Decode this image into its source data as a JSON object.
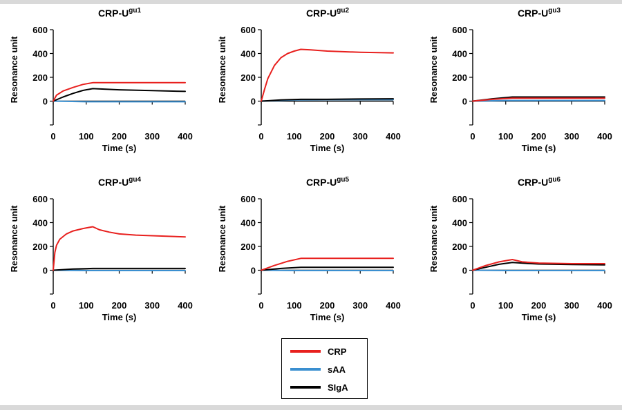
{
  "colors": {
    "CRP": "#e8201e",
    "sAA": "#3a8fd0",
    "SIgA": "#000000",
    "axis": "#000000"
  },
  "legend": [
    {
      "label": "CRP",
      "color": "#e8201e"
    },
    {
      "label": "sAA",
      "color": "#3a8fd0"
    },
    {
      "label": "SIgA",
      "color": "#000000"
    }
  ],
  "chart_data": [
    {
      "type": "line",
      "title_base": "CRP-U",
      "title_sup": "gu1",
      "xlabel": "Time (s)",
      "ylabel": "Resonance unit",
      "xlim": [
        0,
        400
      ],
      "ylim": [
        -200,
        600
      ],
      "xticks": [
        0,
        100,
        200,
        300,
        400
      ],
      "yticks": [
        0,
        200,
        400,
        600
      ],
      "series": [
        {
          "name": "CRP",
          "color": "#e8201e",
          "points": [
            [
              0,
              0
            ],
            [
              10,
              50
            ],
            [
              30,
              85
            ],
            [
              60,
              115
            ],
            [
              90,
              140
            ],
            [
              120,
              155
            ],
            [
              200,
              155
            ],
            [
              300,
              155
            ],
            [
              400,
              155
            ]
          ]
        },
        {
          "name": "sAA",
          "color": "#3a8fd0",
          "points": [
            [
              0,
              0
            ],
            [
              100,
              -5
            ],
            [
              200,
              -5
            ],
            [
              300,
              -5
            ],
            [
              400,
              -5
            ]
          ]
        },
        {
          "name": "SIgA",
          "color": "#000000",
          "points": [
            [
              0,
              0
            ],
            [
              30,
              35
            ],
            [
              60,
              65
            ],
            [
              90,
              90
            ],
            [
              120,
              105
            ],
            [
              160,
              100
            ],
            [
              200,
              95
            ],
            [
              300,
              88
            ],
            [
              400,
              82
            ]
          ]
        }
      ]
    },
    {
      "type": "line",
      "title_base": "CRP-U",
      "title_sup": "gu2",
      "xlabel": "Time (s)",
      "ylabel": "Resonance unit",
      "xlim": [
        0,
        400
      ],
      "ylim": [
        -200,
        600
      ],
      "xticks": [
        0,
        100,
        200,
        300,
        400
      ],
      "yticks": [
        0,
        200,
        400,
        600
      ],
      "series": [
        {
          "name": "CRP",
          "color": "#e8201e",
          "points": [
            [
              0,
              0
            ],
            [
              10,
              100
            ],
            [
              20,
              190
            ],
            [
              40,
              300
            ],
            [
              60,
              365
            ],
            [
              80,
              400
            ],
            [
              100,
              420
            ],
            [
              120,
              435
            ],
            [
              150,
              430
            ],
            [
              200,
              420
            ],
            [
              300,
              410
            ],
            [
              400,
              405
            ]
          ]
        },
        {
          "name": "sAA",
          "color": "#3a8fd0",
          "points": [
            [
              0,
              0
            ],
            [
              100,
              10
            ],
            [
              200,
              12
            ],
            [
              300,
              12
            ],
            [
              400,
              12
            ]
          ]
        },
        {
          "name": "SIgA",
          "color": "#000000",
          "points": [
            [
              0,
              0
            ],
            [
              60,
              10
            ],
            [
              120,
              15
            ],
            [
              200,
              15
            ],
            [
              300,
              18
            ],
            [
              400,
              20
            ]
          ]
        }
      ]
    },
    {
      "type": "line",
      "title_base": "CRP-U",
      "title_sup": "gu3",
      "xlabel": "Time (s)",
      "ylabel": "Resonance unit",
      "xlim": [
        0,
        400
      ],
      "ylim": [
        -200,
        600
      ],
      "xticks": [
        0,
        100,
        200,
        300,
        400
      ],
      "yticks": [
        0,
        200,
        400,
        600
      ],
      "series": [
        {
          "name": "CRP",
          "color": "#e8201e",
          "points": [
            [
              0,
              0
            ],
            [
              60,
              15
            ],
            [
              120,
              25
            ],
            [
              200,
              25
            ],
            [
              300,
              25
            ],
            [
              400,
              25
            ]
          ]
        },
        {
          "name": "sAA",
          "color": "#3a8fd0",
          "points": [
            [
              0,
              0
            ],
            [
              100,
              5
            ],
            [
              200,
              5
            ],
            [
              300,
              5
            ],
            [
              400,
              5
            ]
          ]
        },
        {
          "name": "SIgA",
          "color": "#000000",
          "points": [
            [
              0,
              0
            ],
            [
              60,
              20
            ],
            [
              120,
              35
            ],
            [
              200,
              35
            ],
            [
              300,
              35
            ],
            [
              400,
              35
            ]
          ]
        }
      ]
    },
    {
      "type": "line",
      "title_base": "CRP-U",
      "title_sup": "gu4",
      "xlabel": "Time (s)",
      "ylabel": "Resonance unit",
      "xlim": [
        0,
        400
      ],
      "ylim": [
        -200,
        600
      ],
      "xticks": [
        0,
        100,
        200,
        300,
        400
      ],
      "yticks": [
        0,
        200,
        400,
        600
      ],
      "series": [
        {
          "name": "CRP",
          "color": "#e8201e",
          "points": [
            [
              0,
              0
            ],
            [
              5,
              150
            ],
            [
              10,
              210
            ],
            [
              20,
              260
            ],
            [
              40,
              305
            ],
            [
              60,
              330
            ],
            [
              90,
              350
            ],
            [
              120,
              365
            ],
            [
              140,
              340
            ],
            [
              170,
              320
            ],
            [
              200,
              305
            ],
            [
              250,
              295
            ],
            [
              300,
              290
            ],
            [
              400,
              280
            ]
          ]
        },
        {
          "name": "sAA",
          "color": "#3a8fd0",
          "points": [
            [
              0,
              0
            ],
            [
              100,
              -3
            ],
            [
              200,
              -3
            ],
            [
              300,
              -3
            ],
            [
              400,
              -3
            ]
          ]
        },
        {
          "name": "SIgA",
          "color": "#000000",
          "points": [
            [
              0,
              0
            ],
            [
              60,
              10
            ],
            [
              120,
              15
            ],
            [
              200,
              15
            ],
            [
              300,
              15
            ],
            [
              400,
              15
            ]
          ]
        }
      ]
    },
    {
      "type": "line",
      "title_base": "CRP-U",
      "title_sup": "gu5",
      "xlabel": "Time (s)",
      "ylabel": "Resonance unit",
      "xlim": [
        0,
        400
      ],
      "ylim": [
        -200,
        600
      ],
      "xticks": [
        0,
        100,
        200,
        300,
        400
      ],
      "yticks": [
        0,
        200,
        400,
        600
      ],
      "series": [
        {
          "name": "CRP",
          "color": "#e8201e",
          "points": [
            [
              0,
              0
            ],
            [
              40,
              40
            ],
            [
              80,
              75
            ],
            [
              120,
              100
            ],
            [
              200,
              100
            ],
            [
              300,
              100
            ],
            [
              400,
              100
            ]
          ]
        },
        {
          "name": "sAA",
          "color": "#3a8fd0",
          "points": [
            [
              0,
              0
            ],
            [
              100,
              -3
            ],
            [
              200,
              -3
            ],
            [
              300,
              -3
            ],
            [
              400,
              -3
            ]
          ]
        },
        {
          "name": "SIgA",
          "color": "#000000",
          "points": [
            [
              0,
              0
            ],
            [
              60,
              15
            ],
            [
              120,
              25
            ],
            [
              200,
              25
            ],
            [
              300,
              25
            ],
            [
              400,
              25
            ]
          ]
        }
      ]
    },
    {
      "type": "line",
      "title_base": "CRP-U",
      "title_sup": "gu6",
      "xlabel": "Time (s)",
      "ylabel": "Resonance unit",
      "xlim": [
        0,
        400
      ],
      "ylim": [
        -200,
        600
      ],
      "xticks": [
        0,
        100,
        200,
        300,
        400
      ],
      "yticks": [
        0,
        200,
        400,
        600
      ],
      "series": [
        {
          "name": "CRP",
          "color": "#e8201e",
          "points": [
            [
              0,
              0
            ],
            [
              40,
              40
            ],
            [
              80,
              70
            ],
            [
              120,
              90
            ],
            [
              150,
              70
            ],
            [
              200,
              60
            ],
            [
              300,
              55
            ],
            [
              400,
              55
            ]
          ]
        },
        {
          "name": "sAA",
          "color": "#3a8fd0",
          "points": [
            [
              0,
              0
            ],
            [
              100,
              -3
            ],
            [
              200,
              -3
            ],
            [
              300,
              -3
            ],
            [
              400,
              -3
            ]
          ]
        },
        {
          "name": "SIgA",
          "color": "#000000",
          "points": [
            [
              0,
              0
            ],
            [
              40,
              25
            ],
            [
              80,
              50
            ],
            [
              120,
              65
            ],
            [
              160,
              58
            ],
            [
              200,
              52
            ],
            [
              300,
              48
            ],
            [
              400,
              45
            ]
          ]
        }
      ]
    }
  ]
}
